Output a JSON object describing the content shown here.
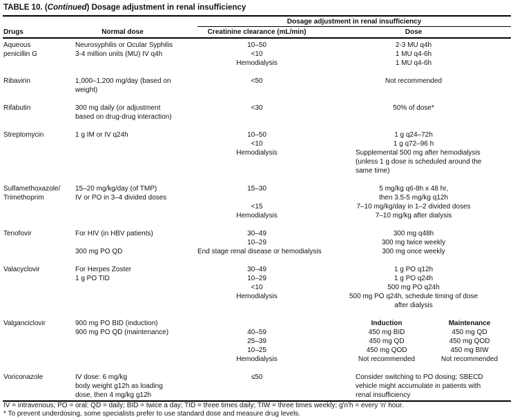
{
  "title": {
    "prefix": "TABLE 10. (",
    "italic": "Continued",
    "suffix": ") Dosage adjustment in renal insufficiency"
  },
  "header": {
    "span": "Dosage adjustment in renal insufficiency",
    "drugs": "Drugs",
    "normal_dose": "Normal dose",
    "creatinine": "Creatinine clearance (mL/min)",
    "dose": "Dose"
  },
  "rows": [
    {
      "drug": [
        "Aqueous",
        "penicillin G"
      ],
      "normal": [
        "Neurosyphilis or Ocular Syphilis",
        "3-4 million units (MU) IV q4h"
      ],
      "cc": [
        "10–50",
        "<10",
        "Hemodialysis"
      ],
      "dose": [
        "2-3 MU q4h",
        "1 MU q4-6h",
        "1 MU q4-6h"
      ]
    },
    {
      "drug": [
        "Ribavirin"
      ],
      "normal": [
        "1,000–1,200 mg/day (based on",
        "weight)"
      ],
      "cc": [
        "<50"
      ],
      "dose": [
        "Not recommended"
      ]
    },
    {
      "drug": [
        "Rifabutin"
      ],
      "normal": [
        "300 mg daily (or adjustment",
        "based on drug-drug interaction)"
      ],
      "cc": [
        "<30"
      ],
      "dose": [
        "50% of dose*"
      ]
    },
    {
      "drug": [
        "Streptomycin"
      ],
      "normal": [
        "1 g IM or IV q24h"
      ],
      "cc": [
        "10–50",
        "<10",
        "Hemodialysis"
      ],
      "dose": [
        "1 g q24–72h",
        "1 g q72–96 h",
        {
          "t": "Supplemental 500 mg after hemodialysis",
          "left": true
        },
        {
          "t": "(unless 1 g dose is scheduled around the",
          "left": true
        },
        {
          "t": "same time)",
          "left": true
        }
      ]
    },
    {
      "drug": [
        "Sulfamethoxazole/",
        "Trimethoprim"
      ],
      "normal": [
        "15–20 mg/kg/day (of TMP)",
        "IV or PO in 3–4 divided doses"
      ],
      "cc": [
        "15–30",
        "",
        "<15",
        "Hemodialysis"
      ],
      "dose": [
        "5 mg/kg q6-8h x 48 hr,",
        "then 3.5-5 mg/kg q12h",
        "7–10 mg/kg/day in 1–2 divided doses",
        "7–10 mg/kg after dialysis"
      ]
    },
    {
      "drug": [
        "Tenofovir"
      ],
      "normal": [
        "For HIV (in HBV patients)",
        "",
        "300 mg PO QD"
      ],
      "cc": [
        "30–49",
        "10–29",
        "End stage renal disease or hemodialysis"
      ],
      "dose": [
        "300 mg q48h",
        "300 mg twice weekly",
        "300 mg once weekly"
      ]
    },
    {
      "drug": [
        "Valacyclovir"
      ],
      "normal": [
        "For Herpes Zoster",
        "1 g PO TID"
      ],
      "cc": [
        "30–49",
        "10–29",
        "<10",
        "Hemodialysis"
      ],
      "dose": [
        "1 g PO q12h",
        "1 g PO q24h",
        "500 mg PO q24h",
        "500 mg PO q24h, schedule timing of dose",
        "after dialysis"
      ]
    },
    {
      "drug": [
        "Valganciclovir"
      ],
      "normal": [
        "900 mg PO BID (induction)",
        "900 mg PO QD (maintenance)"
      ],
      "cc": [
        "",
        "40–59",
        "25–39",
        "10–25",
        "Hemodialysis"
      ],
      "dose_cols": [
        [
          {
            "t": "Induction",
            "bold": true
          },
          "450 mg BID",
          "450 mg QD",
          "450 mg QOD",
          "Not recommended"
        ],
        [
          {
            "t": "Maintenance",
            "bold": true
          },
          "450 mg QD",
          "450 mg QOD",
          "450 mg BIW",
          "Not recommended"
        ]
      ]
    },
    {
      "drug": [
        "Voriconazole"
      ],
      "normal": [
        "IV dose: 6 mg/kg",
        "body weight g12h as loading",
        "dose, then 4 mg/kg g12h"
      ],
      "cc": [
        "≤50"
      ],
      "dose": [
        {
          "t": "Consider switching to PO dosing; SBECD",
          "left": true
        },
        {
          "t": "vehicle might accumulate in patients with",
          "left": true
        },
        {
          "t": "renal insufficiency",
          "left": true
        }
      ]
    }
  ],
  "footnotes": [
    "IV = intravenous; PO = oral; QD = daily; BID = twice a day; TID = three times daily; TIW = three times weekly; g'n'h = every 'n' hour.",
    "* To prevent underdosing, some specialists prefer to use standard dose and measure drug levels."
  ],
  "colors": {
    "text": "#111111",
    "rule": "#000000",
    "background": "#ffffff"
  }
}
